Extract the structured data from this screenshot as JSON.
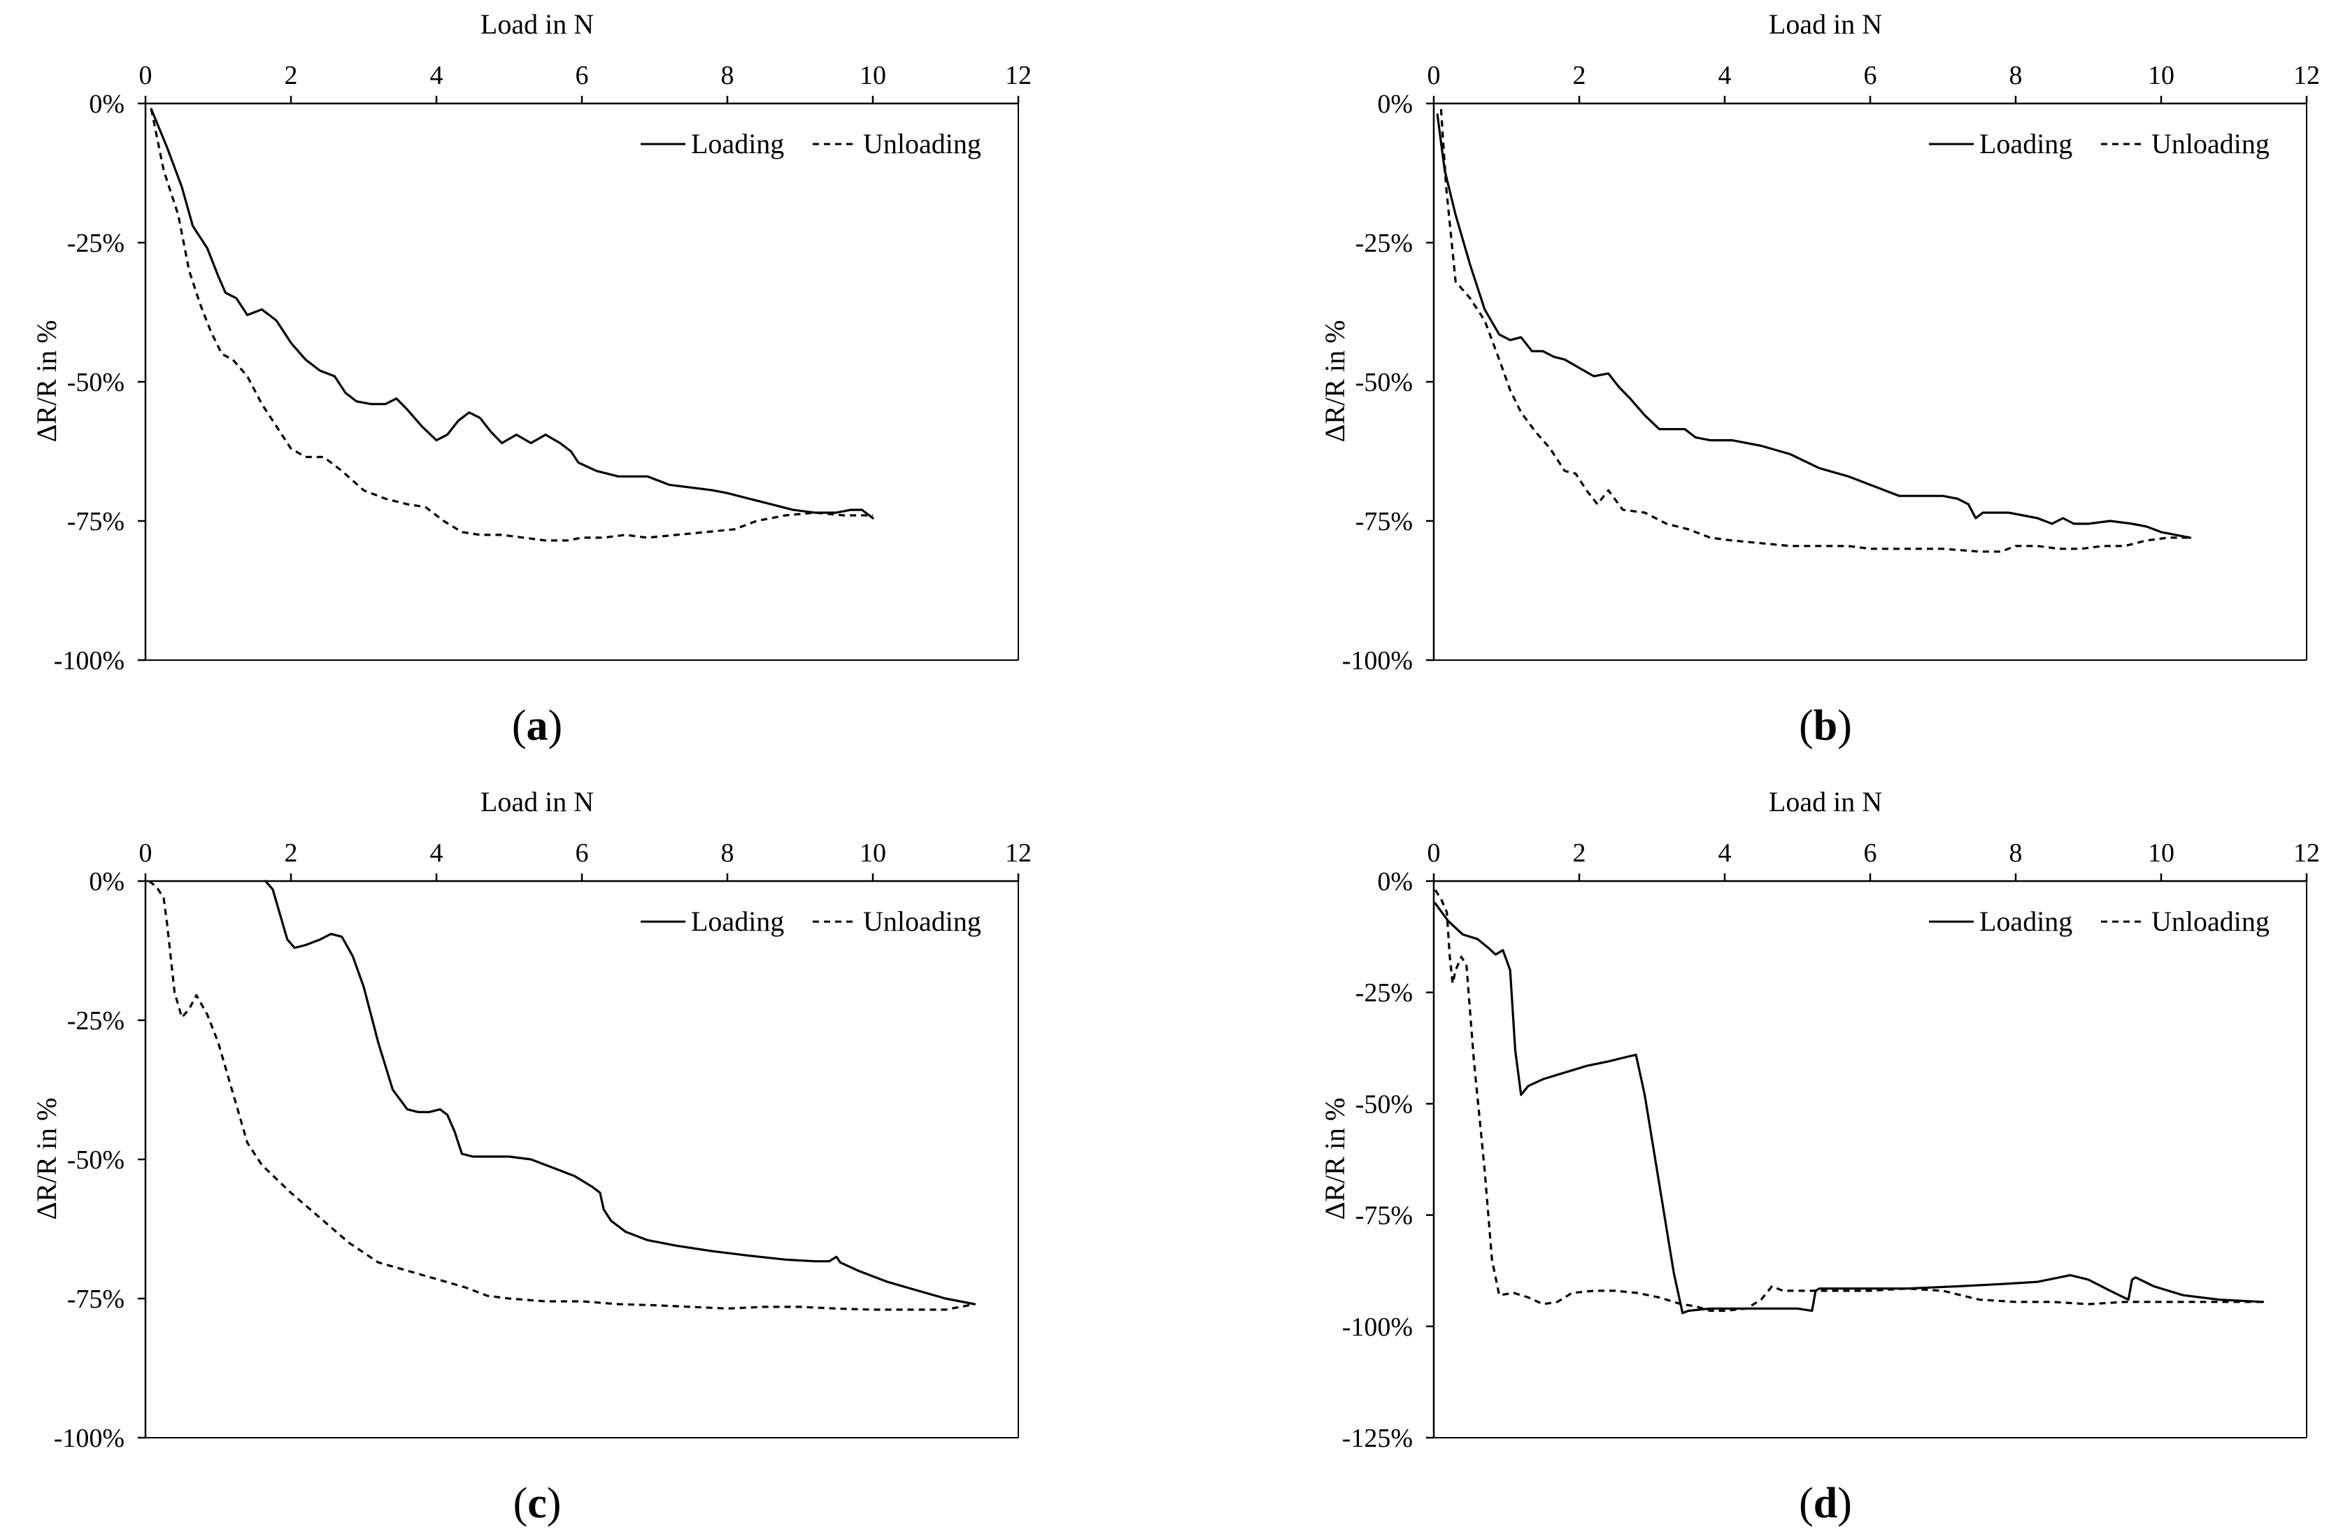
{
  "figure": {
    "panels": [
      "a",
      "b",
      "c",
      "d"
    ]
  },
  "chart_data": [
    {
      "id": "a",
      "type": "line",
      "panel_label": {
        "open": "(",
        "letter": "a",
        "close": ")"
      },
      "xlabel": "Load in N",
      "ylabel": "ΔR/R in %",
      "xlim": [
        0,
        12
      ],
      "ylim": [
        -100,
        0
      ],
      "xticks": [
        0,
        2,
        4,
        6,
        8,
        10,
        12
      ],
      "yticks": [
        0,
        -25,
        -50,
        -75,
        -100
      ],
      "ytick_labels": [
        "0%",
        "-25%",
        "-50%",
        "-75%",
        "-100%"
      ],
      "legend": {
        "position": "top-right",
        "entries": [
          "Loading",
          "Unloading"
        ]
      },
      "series": [
        {
          "name": "Loading",
          "style": "solid",
          "x": [
            0.08,
            0.3,
            0.5,
            0.65,
            0.75,
            0.85,
            1.0,
            1.1,
            1.25,
            1.4,
            1.6,
            1.8,
            2.0,
            2.2,
            2.4,
            2.6,
            2.75,
            2.9,
            3.1,
            3.3,
            3.45,
            3.6,
            3.8,
            4.0,
            4.15,
            4.3,
            4.45,
            4.6,
            4.75,
            4.9,
            5.1,
            5.3,
            5.5,
            5.7,
            5.85,
            5.95,
            6.2,
            6.5,
            6.9,
            7.2,
            7.5,
            7.8,
            8.0,
            8.3,
            8.6,
            8.9,
            9.2,
            9.5,
            9.7,
            9.85,
            10.0
          ],
          "y": [
            -1,
            -8,
            -15,
            -22,
            -24,
            -26,
            -31,
            -34,
            -35,
            -38,
            -37,
            -39,
            -43,
            -46,
            -48,
            -49,
            -52,
            -53.5,
            -54,
            -54,
            -53,
            -55,
            -58,
            -60.5,
            -59.5,
            -57,
            -55.5,
            -56.5,
            -59,
            -61,
            -59.5,
            -61,
            -59.5,
            -61,
            -62.5,
            -64.5,
            -66,
            -67,
            -67,
            -68.5,
            -69,
            -69.5,
            -70,
            -71,
            -72,
            -73,
            -73.5,
            -73.5,
            -73,
            -73,
            -74.5
          ]
        },
        {
          "name": "Unloading",
          "style": "dashed",
          "x": [
            0.08,
            0.25,
            0.45,
            0.6,
            0.75,
            0.9,
            1.05,
            1.2,
            1.4,
            1.6,
            1.8,
            2.0,
            2.2,
            2.45,
            2.7,
            3.0,
            3.3,
            3.6,
            3.85,
            4.1,
            4.35,
            4.6,
            4.9,
            5.2,
            5.5,
            5.8,
            6.0,
            6.3,
            6.6,
            6.9,
            7.3,
            7.7,
            8.1,
            8.4,
            8.8,
            9.2,
            9.6,
            10.0
          ],
          "y": [
            -1,
            -12,
            -20,
            -30,
            -36,
            -41,
            -45,
            -46,
            -49,
            -54,
            -58,
            -62,
            -63.5,
            -63.5,
            -66,
            -69.5,
            -71,
            -72,
            -72.5,
            -75,
            -77,
            -77.5,
            -77.5,
            -78,
            -78.5,
            -78.5,
            -78,
            -78,
            -77.5,
            -78,
            -77.5,
            -77,
            -76.5,
            -75,
            -74,
            -73.5,
            -74,
            -74
          ]
        }
      ]
    },
    {
      "id": "b",
      "type": "line",
      "panel_label": {
        "open": "(",
        "letter": "b",
        "close": ")"
      },
      "xlabel": "Load in N",
      "ylabel": "ΔR/R in %",
      "xlim": [
        0,
        12
      ],
      "ylim": [
        -100,
        0
      ],
      "xticks": [
        0,
        2,
        4,
        6,
        8,
        10,
        12
      ],
      "yticks": [
        0,
        -25,
        -50,
        -75,
        -100
      ],
      "ytick_labels": [
        "0%",
        "-25%",
        "-50%",
        "-75%",
        "-100%"
      ],
      "legend": {
        "position": "top-right",
        "entries": [
          "Loading",
          "Unloading"
        ]
      },
      "series": [
        {
          "name": "Loading",
          "style": "solid",
          "x": [
            0.05,
            0.15,
            0.3,
            0.5,
            0.7,
            0.9,
            1.05,
            1.2,
            1.35,
            1.5,
            1.65,
            1.8,
            2.0,
            2.2,
            2.4,
            2.55,
            2.7,
            2.9,
            3.1,
            3.3,
            3.45,
            3.6,
            3.8,
            4.1,
            4.5,
            4.9,
            5.3,
            5.7,
            6.1,
            6.4,
            6.7,
            7.0,
            7.2,
            7.35,
            7.45,
            7.55,
            7.7,
            7.9,
            8.1,
            8.3,
            8.5,
            8.65,
            8.8,
            9.0,
            9.3,
            9.6,
            9.8,
            10.0,
            10.2,
            10.4
          ],
          "y": [
            -2,
            -12,
            -20,
            -29,
            -37,
            -41.5,
            -42.5,
            -42,
            -44.5,
            -44.5,
            -45.5,
            -46,
            -47.5,
            -49,
            -48.5,
            -51,
            -53,
            -56,
            -58.5,
            -58.5,
            -58.5,
            -60,
            -60.5,
            -60.5,
            -61.5,
            -63,
            -65.5,
            -67,
            -69,
            -70.5,
            -70.5,
            -70.5,
            -71,
            -72,
            -74.5,
            -73.5,
            -73.5,
            -73.5,
            -74,
            -74.5,
            -75.5,
            -74.5,
            -75.5,
            -75.5,
            -75,
            -75.5,
            -76,
            -77,
            -77.5,
            -78
          ]
        },
        {
          "name": "Unloading",
          "style": "dashed",
          "x": [
            0.1,
            0.17,
            0.3,
            0.5,
            0.7,
            0.9,
            1.05,
            1.2,
            1.4,
            1.6,
            1.8,
            1.95,
            2.1,
            2.25,
            2.4,
            2.6,
            2.9,
            3.2,
            3.5,
            3.8,
            4.1,
            4.5,
            4.9,
            5.3,
            5.7,
            6.0,
            6.5,
            7.0,
            7.5,
            7.8,
            8.0,
            8.3,
            8.6,
            8.9,
            9.2,
            9.5,
            9.8,
            10.1,
            10.4
          ],
          "y": [
            -1,
            -15,
            -32,
            -35,
            -39,
            -46,
            -51.5,
            -55.5,
            -59,
            -62,
            -66,
            -66.5,
            -69.5,
            -72,
            -69.5,
            -73,
            -73.5,
            -75.5,
            -76.5,
            -78,
            -78.5,
            -79,
            -79.5,
            -79.5,
            -79.5,
            -80,
            -80,
            -80,
            -80.5,
            -80.5,
            -79.5,
            -79.5,
            -80,
            -80,
            -79.5,
            -79.5,
            -78.5,
            -78,
            -78
          ]
        }
      ]
    },
    {
      "id": "c",
      "type": "line",
      "panel_label": {
        "open": "(",
        "letter": "c",
        "close": ")"
      },
      "xlabel": "Load in N",
      "ylabel": "ΔR/R in %",
      "xlim": [
        0,
        12
      ],
      "ylim": [
        -100,
        0
      ],
      "xticks": [
        0,
        2,
        4,
        6,
        8,
        10,
        12
      ],
      "yticks": [
        0,
        -25,
        -50,
        -75,
        -100
      ],
      "ytick_labels": [
        "0%",
        "-25%",
        "-50%",
        "-75%",
        "-100%"
      ],
      "legend": {
        "position": "top-right",
        "entries": [
          "Loading",
          "Unloading"
        ]
      },
      "series": [
        {
          "name": "Loading",
          "style": "solid",
          "x": [
            1.65,
            1.75,
            1.85,
            1.95,
            2.05,
            2.2,
            2.4,
            2.55,
            2.7,
            2.85,
            3.0,
            3.2,
            3.4,
            3.6,
            3.75,
            3.9,
            4.05,
            4.15,
            4.25,
            4.35,
            4.5,
            4.7,
            5.0,
            5.3,
            5.6,
            5.9,
            6.15,
            6.25,
            6.3,
            6.4,
            6.6,
            6.9,
            7.3,
            7.8,
            8.3,
            8.8,
            9.2,
            9.4,
            9.5,
            9.55,
            9.8,
            10.2,
            10.6,
            11.0,
            11.4
          ],
          "y": [
            0,
            -1.5,
            -6,
            -10.5,
            -12,
            -11.5,
            -10.5,
            -9.5,
            -10,
            -13.5,
            -19,
            -29,
            -37.5,
            -41,
            -41.5,
            -41.5,
            -41,
            -42,
            -45,
            -49,
            -49.5,
            -49.5,
            -49.5,
            -50,
            -51.5,
            -53,
            -55,
            -56,
            -59,
            -61,
            -63,
            -64.5,
            -65.5,
            -66.5,
            -67.3,
            -68,
            -68.3,
            -68.3,
            -67.5,
            -68.5,
            -70,
            -72,
            -73.5,
            -75,
            -76
          ]
        },
        {
          "name": "Unloading",
          "style": "dashed",
          "x": [
            0.05,
            0.15,
            0.25,
            0.3,
            0.4,
            0.5,
            0.6,
            0.7,
            0.85,
            1.0,
            1.2,
            1.4,
            1.6,
            2.0,
            2.4,
            2.8,
            3.2,
            3.6,
            4.0,
            4.4,
            4.7,
            5.0,
            5.5,
            6.0,
            6.5,
            7.0,
            7.5,
            8.0,
            8.5,
            9.0,
            9.5,
            10.0,
            10.5,
            11.0,
            11.4
          ],
          "y": [
            0,
            -1,
            -3,
            -8,
            -20,
            -24.5,
            -23,
            -20.5,
            -24,
            -29,
            -38,
            -47,
            -51,
            -56,
            -60.5,
            -65,
            -68.5,
            -70,
            -71.5,
            -73,
            -74.5,
            -75,
            -75.5,
            -75.5,
            -76,
            -76.2,
            -76.5,
            -76.8,
            -76.5,
            -76.5,
            -76.8,
            -77,
            -77,
            -77,
            -76
          ]
        }
      ]
    },
    {
      "id": "d",
      "type": "line",
      "panel_label": {
        "open": "(",
        "letter": "d",
        "close": ")"
      },
      "xlabel": "Load in N",
      "ylabel": "ΔR/R in %",
      "xlim": [
        0,
        12
      ],
      "ylim": [
        -125,
        0
      ],
      "xticks": [
        0,
        2,
        4,
        6,
        8,
        10,
        12
      ],
      "yticks": [
        0,
        -25,
        -50,
        -75,
        -100,
        -125
      ],
      "ytick_labels": [
        "0%",
        "-25%",
        "-50%",
        "-75%",
        "-100%",
        "-125%"
      ],
      "legend": {
        "position": "top-right",
        "entries": [
          "Loading",
          "Unloading"
        ]
      },
      "series": [
        {
          "name": "Loading",
          "style": "solid",
          "x": [
            0.02,
            0.2,
            0.4,
            0.6,
            0.75,
            0.85,
            0.95,
            1.05,
            1.12,
            1.2,
            1.3,
            1.5,
            1.8,
            2.1,
            2.4,
            2.65,
            2.78,
            2.9,
            3.1,
            3.3,
            3.42,
            3.5,
            3.8,
            4.2,
            4.6,
            5.0,
            5.2,
            5.25,
            5.3,
            5.8,
            6.5,
            7.2,
            7.8,
            8.3,
            8.6,
            8.75,
            9.0,
            9.3,
            9.55,
            9.6,
            9.65,
            9.9,
            10.3,
            10.8,
            11.4
          ],
          "y": [
            -5,
            -9,
            -12,
            -13,
            -15,
            -16.5,
            -15.5,
            -20,
            -38,
            -48,
            -46,
            -44.5,
            -43,
            -41.5,
            -40.5,
            -39.5,
            -39,
            -48,
            -68,
            -88,
            -97,
            -96.5,
            -96,
            -96,
            -96,
            -96,
            -96.5,
            -92,
            -91.5,
            -91.5,
            -91.5,
            -91,
            -90.5,
            -90,
            -89,
            -88.5,
            -89.5,
            -92,
            -94,
            -89.5,
            -89,
            -91,
            -93,
            -94,
            -94.5
          ]
        },
        {
          "name": "Unloading",
          "style": "dashed",
          "x": [
            0.02,
            0.1,
            0.18,
            0.22,
            0.26,
            0.3,
            0.38,
            0.45,
            0.55,
            0.7,
            0.8,
            0.9,
            1.1,
            1.3,
            1.5,
            1.7,
            1.9,
            2.2,
            2.5,
            2.8,
            3.1,
            3.4,
            3.6,
            3.8,
            4.0,
            4.3,
            4.5,
            4.65,
            4.8,
            5.0,
            5.5,
            6.0,
            6.5,
            7.0,
            7.5,
            8.0,
            8.5,
            9.0,
            9.5,
            10.0,
            10.5,
            11.0,
            11.4
          ],
          "y": [
            -2,
            -4,
            -7,
            -17,
            -23,
            -20,
            -17,
            -19,
            -40,
            -65,
            -85,
            -93,
            -92.5,
            -93.5,
            -95,
            -94.5,
            -92.5,
            -92,
            -92,
            -92.5,
            -93.5,
            -95,
            -95.5,
            -96.5,
            -96.5,
            -96,
            -94,
            -91,
            -92,
            -92,
            -92,
            -92,
            -91.5,
            -92,
            -94,
            -94.5,
            -94.5,
            -95,
            -94.5,
            -94.5,
            -94.5,
            -94.5,
            -94.5
          ]
        }
      ]
    }
  ]
}
